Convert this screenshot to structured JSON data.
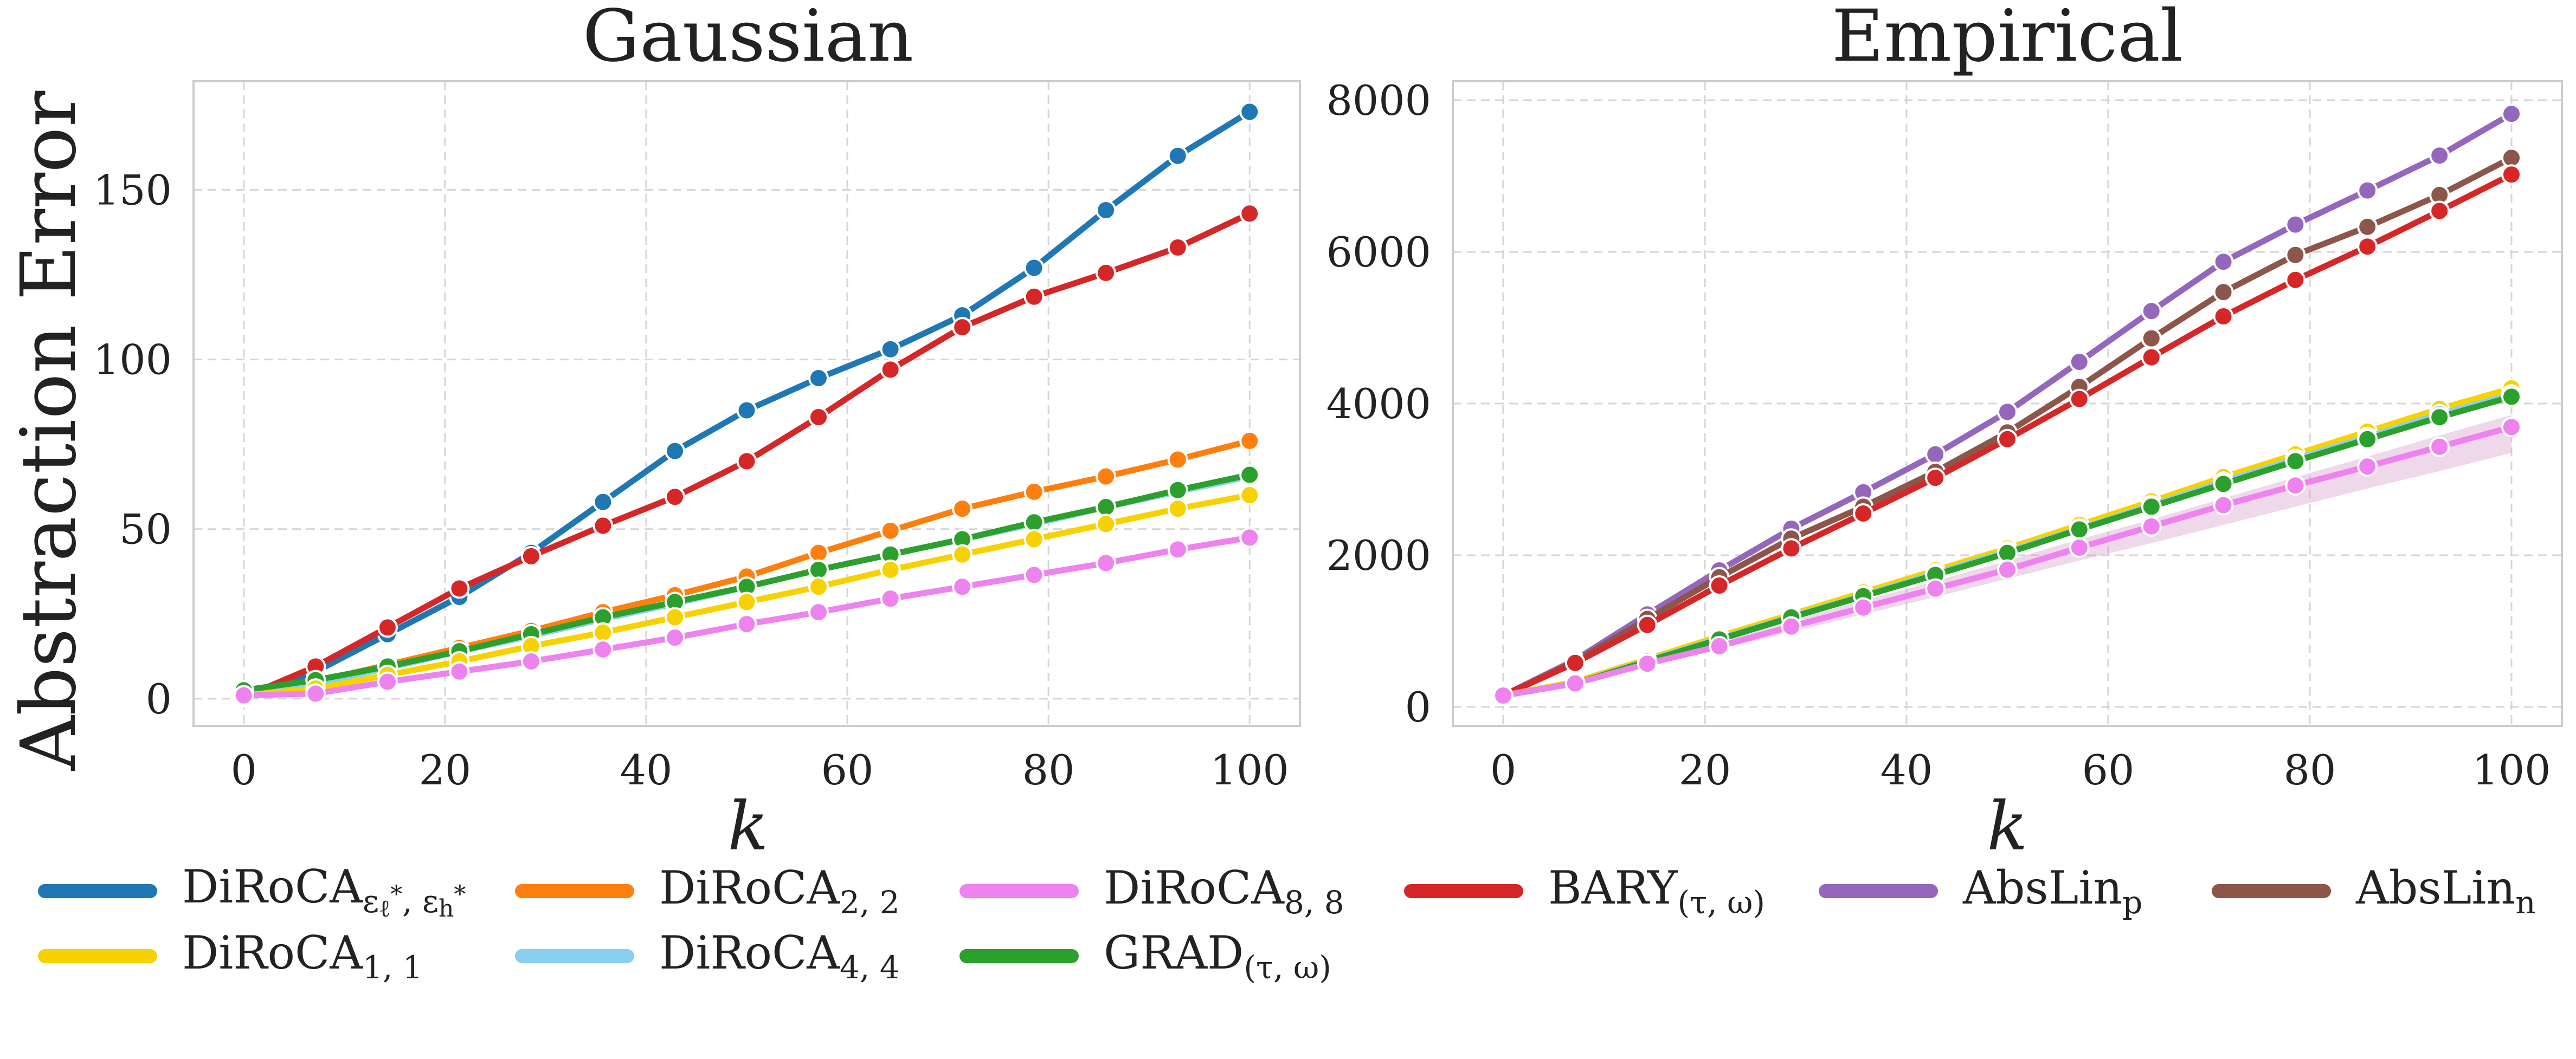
{
  "chart_data": [
    {
      "type": "line",
      "title": "Gaussian",
      "xlabel": "k",
      "ylabel": "Abstraction Error",
      "xlim": [
        -5,
        105
      ],
      "ylim": [
        -8,
        182
      ],
      "xticks": [
        0,
        20,
        40,
        60,
        80,
        100
      ],
      "yticks": [
        0,
        50,
        100,
        150
      ],
      "grid": true,
      "x": [
        0,
        7.14,
        14.29,
        21.43,
        28.57,
        35.71,
        42.86,
        50,
        57.14,
        64.29,
        71.43,
        78.57,
        85.71,
        92.86,
        100
      ],
      "series": [
        {
          "key": "diroca_eps",
          "color": "#1f77b4",
          "values": [
            0.5,
            8,
            19,
            30,
            43,
            58,
            73,
            85,
            94.5,
            103,
            113,
            127,
            144,
            160,
            173
          ]
        },
        {
          "key": "bary",
          "color": "#d62728",
          "values": [
            0.5,
            9.5,
            21,
            32.5,
            42,
            51,
            59.5,
            70,
            83,
            97,
            109.5,
            118.5,
            125.5,
            133,
            143
          ]
        },
        {
          "key": "diroca_22",
          "color": "#ff7f0e",
          "values": [
            2,
            5,
            10,
            15,
            20,
            25.5,
            30.5,
            36,
            43,
            49.5,
            56,
            61,
            65.5,
            70.5,
            76
          ]
        },
        {
          "key": "diroca_44",
          "color": "#89cff0",
          "values": [
            2,
            4.5,
            9,
            14,
            18.5,
            23.5,
            28,
            33,
            38,
            42.5,
            47,
            51.5,
            56.5,
            61,
            65.5
          ]
        },
        {
          "key": "grad",
          "color": "#2ca02c",
          "values": [
            2.5,
            5.5,
            9.5,
            14,
            19,
            24,
            28.5,
            33,
            38,
            42.5,
            47,
            52,
            56.5,
            61.5,
            66
          ]
        },
        {
          "key": "diroca_11",
          "color": "#f7d200",
          "values": [
            1,
            3,
            7,
            11,
            15.5,
            19.5,
            24,
            28.5,
            33,
            38,
            42.5,
            47,
            51.5,
            56,
            60
          ]
        },
        {
          "key": "diroca_88",
          "color": "#ee82ee",
          "values": [
            1,
            1.5,
            5,
            8,
            11,
            14.5,
            18,
            22,
            25.5,
            29.5,
            33,
            36.5,
            40,
            44,
            47.5
          ]
        }
      ]
    },
    {
      "type": "line",
      "title": "Empirical",
      "xlabel": "k",
      "ylabel": "",
      "xlim": [
        -5,
        105
      ],
      "ylim": [
        -250,
        8250
      ],
      "xticks": [
        0,
        20,
        40,
        60,
        80,
        100
      ],
      "yticks": [
        0,
        2000,
        4000,
        6000,
        8000
      ],
      "grid": true,
      "x": [
        0,
        7.14,
        14.29,
        21.43,
        28.57,
        35.71,
        42.86,
        50,
        57.14,
        64.29,
        71.43,
        78.57,
        85.71,
        92.86,
        100
      ],
      "band": {
        "key": "diroca_88",
        "color": "#cf8fc0",
        "lower": [
          150,
          300,
          530,
          760,
          990,
          1220,
          1450,
          1690,
          1930,
          2160,
          2400,
          2640,
          2880,
          3110,
          3350
        ],
        "upper": [
          150,
          340,
          620,
          880,
          1140,
          1400,
          1660,
          1930,
          2210,
          2470,
          2750,
          3030,
          3300,
          3580,
          3850
        ]
      },
      "series": [
        {
          "key": "abslin_p",
          "color": "#9467bd",
          "values": [
            150,
            620,
            1220,
            1800,
            2350,
            2830,
            3330,
            3890,
            4550,
            5220,
            5870,
            6360,
            6810,
            7270,
            7820
          ]
        },
        {
          "key": "abslin_n",
          "color": "#8c564b",
          "values": [
            150,
            600,
            1160,
            1710,
            2220,
            2640,
            3100,
            3620,
            4220,
            4860,
            5470,
            5960,
            6330,
            6750,
            7240
          ]
        },
        {
          "key": "bary",
          "color": "#d62728",
          "values": [
            150,
            580,
            1080,
            1600,
            2090,
            2550,
            3020,
            3530,
            4060,
            4610,
            5150,
            5630,
            6070,
            6540,
            7020
          ]
        },
        {
          "key": "diroca_eps",
          "color": "#1f77b4",
          "values": [
            150,
            320,
            620,
            910,
            1200,
            1490,
            1770,
            2060,
            2370,
            2680,
            3000,
            3300,
            3600,
            3900,
            4170
          ]
        },
        {
          "key": "diroca_22",
          "color": "#ff7f0e",
          "values": [
            150,
            320,
            620,
            910,
            1200,
            1490,
            1770,
            2060,
            2370,
            2680,
            3000,
            3290,
            3590,
            3890,
            4160
          ]
        },
        {
          "key": "diroca_11",
          "color": "#f7d200",
          "values": [
            150,
            330,
            630,
            930,
            1220,
            1510,
            1800,
            2090,
            2400,
            2710,
            3030,
            3330,
            3630,
            3930,
            4200
          ]
        },
        {
          "key": "diroca_44",
          "color": "#89cff0",
          "values": [
            150,
            310,
            610,
            900,
            1190,
            1470,
            1760,
            2050,
            2350,
            2660,
            2970,
            3270,
            3560,
            3860,
            4120
          ]
        },
        {
          "key": "grad",
          "color": "#2ca02c",
          "values": [
            150,
            310,
            600,
            890,
            1180,
            1460,
            1740,
            2030,
            2340,
            2640,
            2940,
            3240,
            3530,
            3820,
            4090
          ]
        },
        {
          "key": "diroca_88",
          "color": "#ee82ee",
          "values": [
            150,
            310,
            570,
            800,
            1060,
            1310,
            1560,
            1810,
            2100,
            2380,
            2660,
            2920,
            3170,
            3430,
            3690
          ]
        }
      ]
    }
  ],
  "legend": [
    {
      "key": "diroca_eps",
      "color": "#1f77b4",
      "base": "DiRoCA",
      "sub": "ε",
      "sub_note": "ℓ",
      "sup": "*",
      "sub2": "ε",
      "sub2_note": "h",
      "sup2": "*",
      "sep": ", "
    },
    {
      "key": "diroca_22",
      "color": "#ff7f0e",
      "base": "DiRoCA",
      "sub_text": "2, 2"
    },
    {
      "key": "diroca_88",
      "color": "#ee82ee",
      "base": "DiRoCA",
      "sub_text": "8, 8"
    },
    {
      "key": "bary",
      "color": "#d62728",
      "base": "BARY",
      "sub_text": "(τ, ω)"
    },
    {
      "key": "abslin_p",
      "color": "#9467bd",
      "base": "AbsLin",
      "sub_text": "p"
    },
    {
      "key": "abslin_n",
      "color": "#8c564b",
      "base": "AbsLin",
      "sub_text": "n"
    },
    {
      "key": "diroca_11",
      "color": "#f7d200",
      "base": "DiRoCA",
      "sub_text": "1, 1"
    },
    {
      "key": "diroca_44",
      "color": "#89cff0",
      "base": "DiRoCA",
      "sub_text": "4, 4"
    },
    {
      "key": "grad",
      "color": "#2ca02c",
      "base": "GRAD",
      "sub_text": "(τ, ω)"
    }
  ]
}
